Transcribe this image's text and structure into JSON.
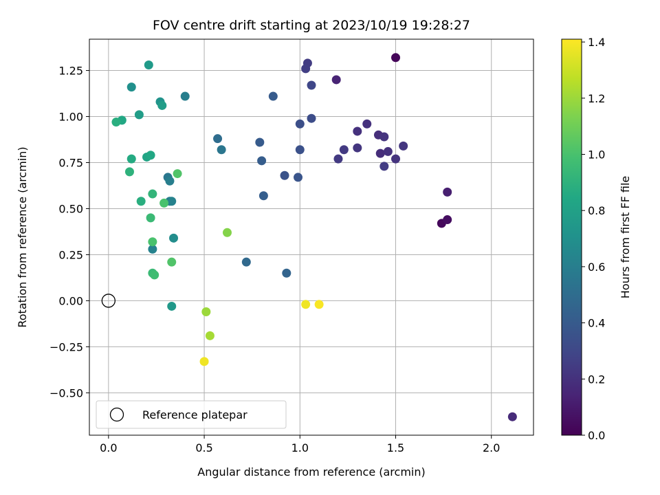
{
  "chart_data": {
    "type": "scatter",
    "title": "FOV centre drift starting at 2023/10/19 19:28:27",
    "xlabel": "Angular distance from reference (arcmin)",
    "ylabel": "Rotation from reference (arcmin)",
    "xlim": [
      -0.1,
      2.22
    ],
    "ylim": [
      -0.73,
      1.42
    ],
    "xticks": [
      0.0,
      0.5,
      1.0,
      1.5,
      2.0
    ],
    "xtick_labels": [
      "0.0",
      "0.5",
      "1.0",
      "1.5",
      "2.0"
    ],
    "yticks": [
      -0.5,
      -0.25,
      0.0,
      0.25,
      0.5,
      0.75,
      1.0,
      1.25
    ],
    "ytick_labels": [
      "−0.50",
      "−0.25",
      "0.00",
      "0.25",
      "0.50",
      "0.75",
      "1.00",
      "1.25"
    ],
    "grid": true,
    "colormap": "viridis",
    "colorbar": {
      "label": "Hours from first FF file",
      "range": [
        0.0,
        1.41
      ],
      "ticks": [
        0.0,
        0.2,
        0.4,
        0.6,
        0.8,
        1.0,
        1.2,
        1.4
      ],
      "tick_labels": [
        "0.0",
        "0.2",
        "0.4",
        "0.6",
        "0.8",
        "1.0",
        "1.2",
        "1.4"
      ]
    },
    "legend": {
      "entries": [
        "Reference platepar"
      ],
      "placement": "lower-left"
    },
    "reference_point": {
      "x": 0.0,
      "y": 0.0
    },
    "points": [
      {
        "x": 1.5,
        "y": 1.32,
        "c": 0.02
      },
      {
        "x": 1.74,
        "y": 0.42,
        "c": 0.03
      },
      {
        "x": 1.77,
        "y": 0.44,
        "c": 0.05
      },
      {
        "x": 1.77,
        "y": 0.59,
        "c": 0.12
      },
      {
        "x": 2.11,
        "y": -0.63,
        "c": 0.17
      },
      {
        "x": 1.19,
        "y": 1.2,
        "c": 0.14
      },
      {
        "x": 1.3,
        "y": 0.92,
        "c": 0.2
      },
      {
        "x": 1.35,
        "y": 0.96,
        "c": 0.2
      },
      {
        "x": 1.41,
        "y": 0.9,
        "c": 0.19
      },
      {
        "x": 1.44,
        "y": 0.89,
        "c": 0.21
      },
      {
        "x": 1.42,
        "y": 0.8,
        "c": 0.18
      },
      {
        "x": 1.46,
        "y": 0.81,
        "c": 0.2
      },
      {
        "x": 1.5,
        "y": 0.77,
        "c": 0.21
      },
      {
        "x": 1.54,
        "y": 0.84,
        "c": 0.22
      },
      {
        "x": 1.44,
        "y": 0.73,
        "c": 0.25
      },
      {
        "x": 1.3,
        "y": 0.83,
        "c": 0.22
      },
      {
        "x": 1.23,
        "y": 0.82,
        "c": 0.24
      },
      {
        "x": 1.2,
        "y": 0.77,
        "c": 0.24
      },
      {
        "x": 1.04,
        "y": 1.29,
        "c": 0.25
      },
      {
        "x": 1.03,
        "y": 1.26,
        "c": 0.26
      },
      {
        "x": 1.06,
        "y": 1.17,
        "c": 0.3
      },
      {
        "x": 1.06,
        "y": 0.99,
        "c": 0.33
      },
      {
        "x": 1.0,
        "y": 0.96,
        "c": 0.34
      },
      {
        "x": 1.0,
        "y": 0.82,
        "c": 0.35
      },
      {
        "x": 0.92,
        "y": 0.68,
        "c": 0.36
      },
      {
        "x": 0.99,
        "y": 0.67,
        "c": 0.37
      },
      {
        "x": 0.86,
        "y": 1.11,
        "c": 0.4
      },
      {
        "x": 0.79,
        "y": 0.86,
        "c": 0.4
      },
      {
        "x": 0.8,
        "y": 0.76,
        "c": 0.41
      },
      {
        "x": 0.81,
        "y": 0.57,
        "c": 0.42
      },
      {
        "x": 0.93,
        "y": 0.15,
        "c": 0.45
      },
      {
        "x": 0.72,
        "y": 0.21,
        "c": 0.48
      },
      {
        "x": 0.57,
        "y": 0.88,
        "c": 0.5
      },
      {
        "x": 0.59,
        "y": 0.82,
        "c": 0.55
      },
      {
        "x": 0.4,
        "y": 1.11,
        "c": 0.6
      },
      {
        "x": 0.31,
        "y": 0.67,
        "c": 0.56
      },
      {
        "x": 0.32,
        "y": 0.65,
        "c": 0.6
      },
      {
        "x": 0.32,
        "y": 0.54,
        "c": 0.58
      },
      {
        "x": 0.33,
        "y": 0.54,
        "c": 0.62
      },
      {
        "x": 0.23,
        "y": 0.28,
        "c": 0.62
      },
      {
        "x": 0.34,
        "y": 0.34,
        "c": 0.68
      },
      {
        "x": 0.33,
        "y": -0.03,
        "c": 0.75
      },
      {
        "x": 0.27,
        "y": 1.08,
        "c": 0.72
      },
      {
        "x": 0.28,
        "y": 1.06,
        "c": 0.78
      },
      {
        "x": 0.12,
        "y": 1.16,
        "c": 0.7
      },
      {
        "x": 0.21,
        "y": 1.28,
        "c": 0.76
      },
      {
        "x": 0.16,
        "y": 1.01,
        "c": 0.78
      },
      {
        "x": 0.07,
        "y": 0.98,
        "c": 0.84
      },
      {
        "x": 0.04,
        "y": 0.97,
        "c": 0.88
      },
      {
        "x": 0.2,
        "y": 0.78,
        "c": 0.82
      },
      {
        "x": 0.22,
        "y": 0.79,
        "c": 0.84
      },
      {
        "x": 0.12,
        "y": 0.77,
        "c": 0.86
      },
      {
        "x": 0.11,
        "y": 0.7,
        "c": 0.9
      },
      {
        "x": 0.17,
        "y": 0.54,
        "c": 0.88
      },
      {
        "x": 0.23,
        "y": 0.58,
        "c": 0.92
      },
      {
        "x": 0.29,
        "y": 0.53,
        "c": 1.0
      },
      {
        "x": 0.36,
        "y": 0.69,
        "c": 1.02
      },
      {
        "x": 0.22,
        "y": 0.45,
        "c": 0.95
      },
      {
        "x": 0.23,
        "y": 0.32,
        "c": 1.0
      },
      {
        "x": 0.23,
        "y": 0.15,
        "c": 0.95
      },
      {
        "x": 0.24,
        "y": 0.14,
        "c": 0.97
      },
      {
        "x": 0.33,
        "y": 0.21,
        "c": 1.02
      },
      {
        "x": 0.62,
        "y": 0.37,
        "c": 1.15
      },
      {
        "x": 0.51,
        "y": -0.06,
        "c": 1.2
      },
      {
        "x": 0.53,
        "y": -0.19,
        "c": 1.22
      },
      {
        "x": 0.5,
        "y": -0.33,
        "c": 1.38
      },
      {
        "x": 1.03,
        "y": -0.02,
        "c": 1.38
      },
      {
        "x": 1.1,
        "y": -0.02,
        "c": 1.4
      }
    ]
  }
}
